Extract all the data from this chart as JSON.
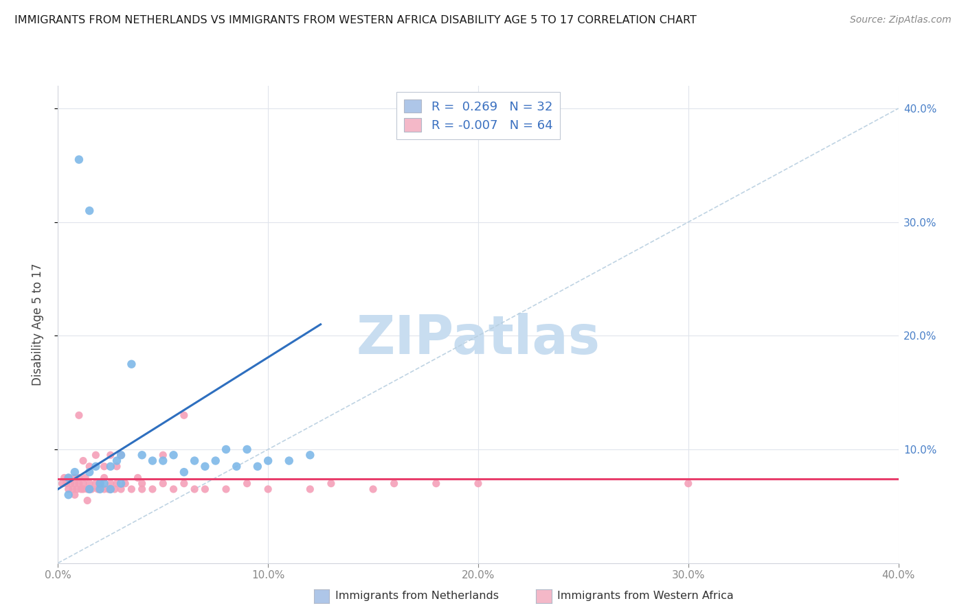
{
  "title": "IMMIGRANTS FROM NETHERLANDS VS IMMIGRANTS FROM WESTERN AFRICA DISABILITY AGE 5 TO 17 CORRELATION CHART",
  "source": "Source: ZipAtlas.com",
  "ylabel": "Disability Age 5 to 17",
  "xlim": [
    0.0,
    0.4
  ],
  "ylim": [
    0.0,
    0.42
  ],
  "xticks": [
    0.0,
    0.1,
    0.2,
    0.3,
    0.4
  ],
  "yticks": [
    0.1,
    0.2,
    0.3,
    0.4
  ],
  "xticklabels": [
    "0.0%",
    "10.0%",
    "20.0%",
    "30.0%",
    "40.0%"
  ],
  "right_yticklabels": [
    "10.0%",
    "20.0%",
    "30.0%",
    "40.0%"
  ],
  "legend1_label": "R =  0.269   N = 32",
  "legend2_label": "R = -0.007   N = 64",
  "legend1_color": "#aec6e8",
  "legend2_color": "#f4b8c8",
  "scatter1_color": "#7eb8e8",
  "scatter2_color": "#f4a0b8",
  "line1_color": "#2e6fbf",
  "line2_color": "#e83e6c",
  "diag_color": "#b8cfe0",
  "watermark": "ZIPatlas",
  "watermark_color": "#c8ddf0",
  "background": "#ffffff",
  "grid_color": "#e0e4ec",
  "right_tick_color": "#4a80c8",
  "nl_x": [
    0.005,
    0.008,
    0.01,
    0.015,
    0.015,
    0.018,
    0.02,
    0.022,
    0.025,
    0.028,
    0.03,
    0.035,
    0.04,
    0.045,
    0.05,
    0.055,
    0.06,
    0.065,
    0.07,
    0.075,
    0.08,
    0.085,
    0.09,
    0.095,
    0.1,
    0.11,
    0.12,
    0.015,
    0.02,
    0.025,
    0.03,
    0.005
  ],
  "nl_y": [
    0.075,
    0.08,
    0.355,
    0.08,
    0.31,
    0.085,
    0.065,
    0.07,
    0.085,
    0.09,
    0.095,
    0.175,
    0.095,
    0.09,
    0.09,
    0.095,
    0.08,
    0.09,
    0.085,
    0.09,
    0.1,
    0.085,
    0.1,
    0.085,
    0.09,
    0.09,
    0.095,
    0.065,
    0.07,
    0.065,
    0.07,
    0.06
  ],
  "wa_x": [
    0.002,
    0.003,
    0.004,
    0.005,
    0.005,
    0.006,
    0.007,
    0.008,
    0.008,
    0.009,
    0.01,
    0.01,
    0.011,
    0.012,
    0.012,
    0.013,
    0.014,
    0.015,
    0.015,
    0.016,
    0.018,
    0.019,
    0.02,
    0.022,
    0.022,
    0.024,
    0.025,
    0.025,
    0.027,
    0.028,
    0.03,
    0.032,
    0.035,
    0.038,
    0.04,
    0.04,
    0.045,
    0.05,
    0.055,
    0.06,
    0.065,
    0.07,
    0.08,
    0.09,
    0.01,
    0.012,
    0.015,
    0.018,
    0.022,
    0.025,
    0.028,
    0.03,
    0.008,
    0.014,
    0.16,
    0.18,
    0.3,
    0.05,
    0.06,
    0.1,
    0.2,
    0.15,
    0.13,
    0.12
  ],
  "wa_y": [
    0.07,
    0.075,
    0.07,
    0.065,
    0.075,
    0.07,
    0.065,
    0.07,
    0.075,
    0.065,
    0.07,
    0.075,
    0.065,
    0.07,
    0.065,
    0.075,
    0.065,
    0.065,
    0.07,
    0.065,
    0.07,
    0.065,
    0.07,
    0.065,
    0.075,
    0.065,
    0.065,
    0.07,
    0.065,
    0.07,
    0.065,
    0.07,
    0.065,
    0.075,
    0.065,
    0.07,
    0.065,
    0.07,
    0.065,
    0.07,
    0.065,
    0.065,
    0.065,
    0.07,
    0.13,
    0.09,
    0.085,
    0.095,
    0.085,
    0.095,
    0.085,
    0.095,
    0.06,
    0.055,
    0.07,
    0.07,
    0.07,
    0.095,
    0.13,
    0.065,
    0.07,
    0.065,
    0.07,
    0.065
  ],
  "nl_line_x": [
    0.0,
    0.125
  ],
  "nl_line_y": [
    0.065,
    0.21
  ],
  "wa_line_x": [
    0.0,
    0.4
  ],
  "wa_line_y": [
    0.074,
    0.074
  ]
}
